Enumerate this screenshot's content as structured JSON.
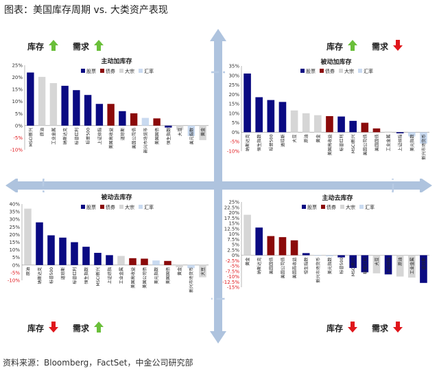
{
  "page_title": "图表：美国库存周期 vs. 大类资产表现",
  "source_note": "资料来源：Bloomberg，FactSet，中金公司研究部",
  "labels": {
    "inventory": "库存",
    "demand": "需求"
  },
  "colors": {
    "stock": "#0a0a82",
    "bond": "#8b0a0a",
    "commodity": "#d6d6d6",
    "fx": "#c9daf0",
    "up_arrow": "#6abf3a",
    "down_arrow": "#e0161b",
    "axis": "#aec3de"
  },
  "icons": {
    "up": "up-arrow-icon",
    "down": "down-arrow-icon"
  },
  "chart_data": [
    {
      "type": "bar",
      "title": "主动加库存",
      "inventory_signal": "up",
      "demand_signal": "up",
      "legend": [
        "股票",
        "债券",
        "大宗",
        "汇率"
      ],
      "ylim": [
        -10,
        25
      ],
      "ytick_step": 5,
      "ytick_labels": [
        "-10%",
        "-5%",
        "0%",
        "5%",
        "10%",
        "15%",
        "20%",
        "25%"
      ],
      "categories": [
        "MSCI新兴",
        "原油",
        "工业金属",
        "纳斯达克",
        "标普红利",
        "标普500",
        "上证综指",
        "美国高收益",
        "道琼斯",
        "美国公司债",
        "新兴市场货币",
        "美国国债",
        "恒生指数",
        "大豆",
        "美元指数",
        "黄金"
      ],
      "values": [
        22,
        20.2,
        17.6,
        16.5,
        14.7,
        12.7,
        9,
        9,
        6,
        5.1,
        3.2,
        3,
        -0.8,
        -1.7,
        -4.3,
        -6
      ],
      "groups": [
        "stock",
        "commodity",
        "commodity",
        "stock",
        "stock",
        "stock",
        "stock",
        "bond",
        "stock",
        "bond",
        "fx",
        "bond",
        "stock",
        "commodity",
        "fx",
        "commodity"
      ]
    },
    {
      "type": "bar",
      "title": "被动加库存",
      "inventory_signal": "up",
      "demand_signal": "down",
      "legend": [
        "股票",
        "债券",
        "大宗",
        "汇率"
      ],
      "ylim": [
        -10,
        35
      ],
      "ytick_step": 5,
      "ytick_labels": [
        "-10%",
        "-5%",
        "0%",
        "5%",
        "10%",
        "15%",
        "20%",
        "25%",
        "30%",
        "35%"
      ],
      "categories": [
        "纳斯达克",
        "恒生指数",
        "标普500",
        "道琼斯",
        "大豆",
        "原油",
        "黄金",
        "美国高收益",
        "标普红利",
        "MSCI新兴",
        "美国公司债",
        "美国国债",
        "工业金属",
        "上证综指",
        "美元指数",
        "新兴市场货币"
      ],
      "values": [
        31,
        18.5,
        17,
        16,
        11.5,
        10,
        9,
        8.5,
        8.3,
        6,
        5,
        2,
        0.3,
        -0.6,
        -2.2,
        -6
      ],
      "groups": [
        "stock",
        "stock",
        "stock",
        "stock",
        "commodity",
        "commodity",
        "commodity",
        "bond",
        "stock",
        "stock",
        "bond",
        "bond",
        "commodity",
        "stock",
        "fx",
        "fx"
      ]
    },
    {
      "type": "bar",
      "title": "被动去库存",
      "inventory_signal": "down",
      "demand_signal": "up",
      "legend": [
        "股票",
        "债券",
        "大宗",
        "汇率"
      ],
      "ylim": [
        -10,
        40
      ],
      "ytick_step": 5,
      "ytick_labels": [
        "-10%",
        "-5%",
        "0%",
        "5%",
        "10%",
        "15%",
        "20%",
        "25%",
        "30%",
        "35%",
        "40%"
      ],
      "categories": [
        "原油",
        "纳斯达克",
        "标普500",
        "道琼斯",
        "标普红利",
        "恒生指数",
        "MSCI新兴",
        "上证综指",
        "工业金属",
        "美国高收益",
        "美国公司债",
        "美元指数",
        "美国国债",
        "黄金",
        "新兴市场货币",
        "大豆"
      ],
      "values": [
        37,
        28,
        19.5,
        18,
        15,
        12,
        8,
        6.5,
        6,
        4.5,
        4.2,
        3,
        2.7,
        -1.5,
        -2,
        -8
      ],
      "groups": [
        "commodity",
        "stock",
        "stock",
        "stock",
        "stock",
        "stock",
        "stock",
        "stock",
        "commodity",
        "bond",
        "bond",
        "fx",
        "bond",
        "commodity",
        "fx",
        "commodity"
      ]
    },
    {
      "type": "bar",
      "title": "主动去库存",
      "inventory_signal": "down",
      "demand_signal": "down",
      "legend": [
        "股票",
        "债券",
        "大宗",
        "汇率"
      ],
      "ylim": [
        -15,
        25
      ],
      "ytick_step": 2.5,
      "ytick_labels": [
        "-15%",
        "-12.5%",
        "-10%",
        "-7.5%",
        "-5%",
        "-2.5%",
        "0%",
        "2.5%",
        "5%",
        "7.5%",
        "10%",
        "12.5%",
        "15%",
        "17.5%",
        "20%",
        "22.5%",
        "25%"
      ],
      "categories": [
        "黄金",
        "纳斯达克",
        "美国国债",
        "美国公司债",
        "美国高收益",
        "恒生指数",
        "新兴市场货币",
        "美元指数",
        "标普500",
        "MSCI新兴",
        "标普红利",
        "大豆",
        "上证综指",
        "原油",
        "工业金属",
        "道琼斯"
      ],
      "values": [
        19,
        13,
        9,
        8.5,
        7,
        1,
        -0.3,
        -0.5,
        -1,
        -6,
        -8,
        -8.5,
        -9,
        -10,
        -10.5,
        -13
      ],
      "groups": [
        "commodity",
        "stock",
        "bond",
        "bond",
        "bond",
        "stock",
        "fx",
        "fx",
        "stock",
        "stock",
        "stock",
        "commodity",
        "stock",
        "commodity",
        "commodity",
        "stock"
      ]
    }
  ]
}
